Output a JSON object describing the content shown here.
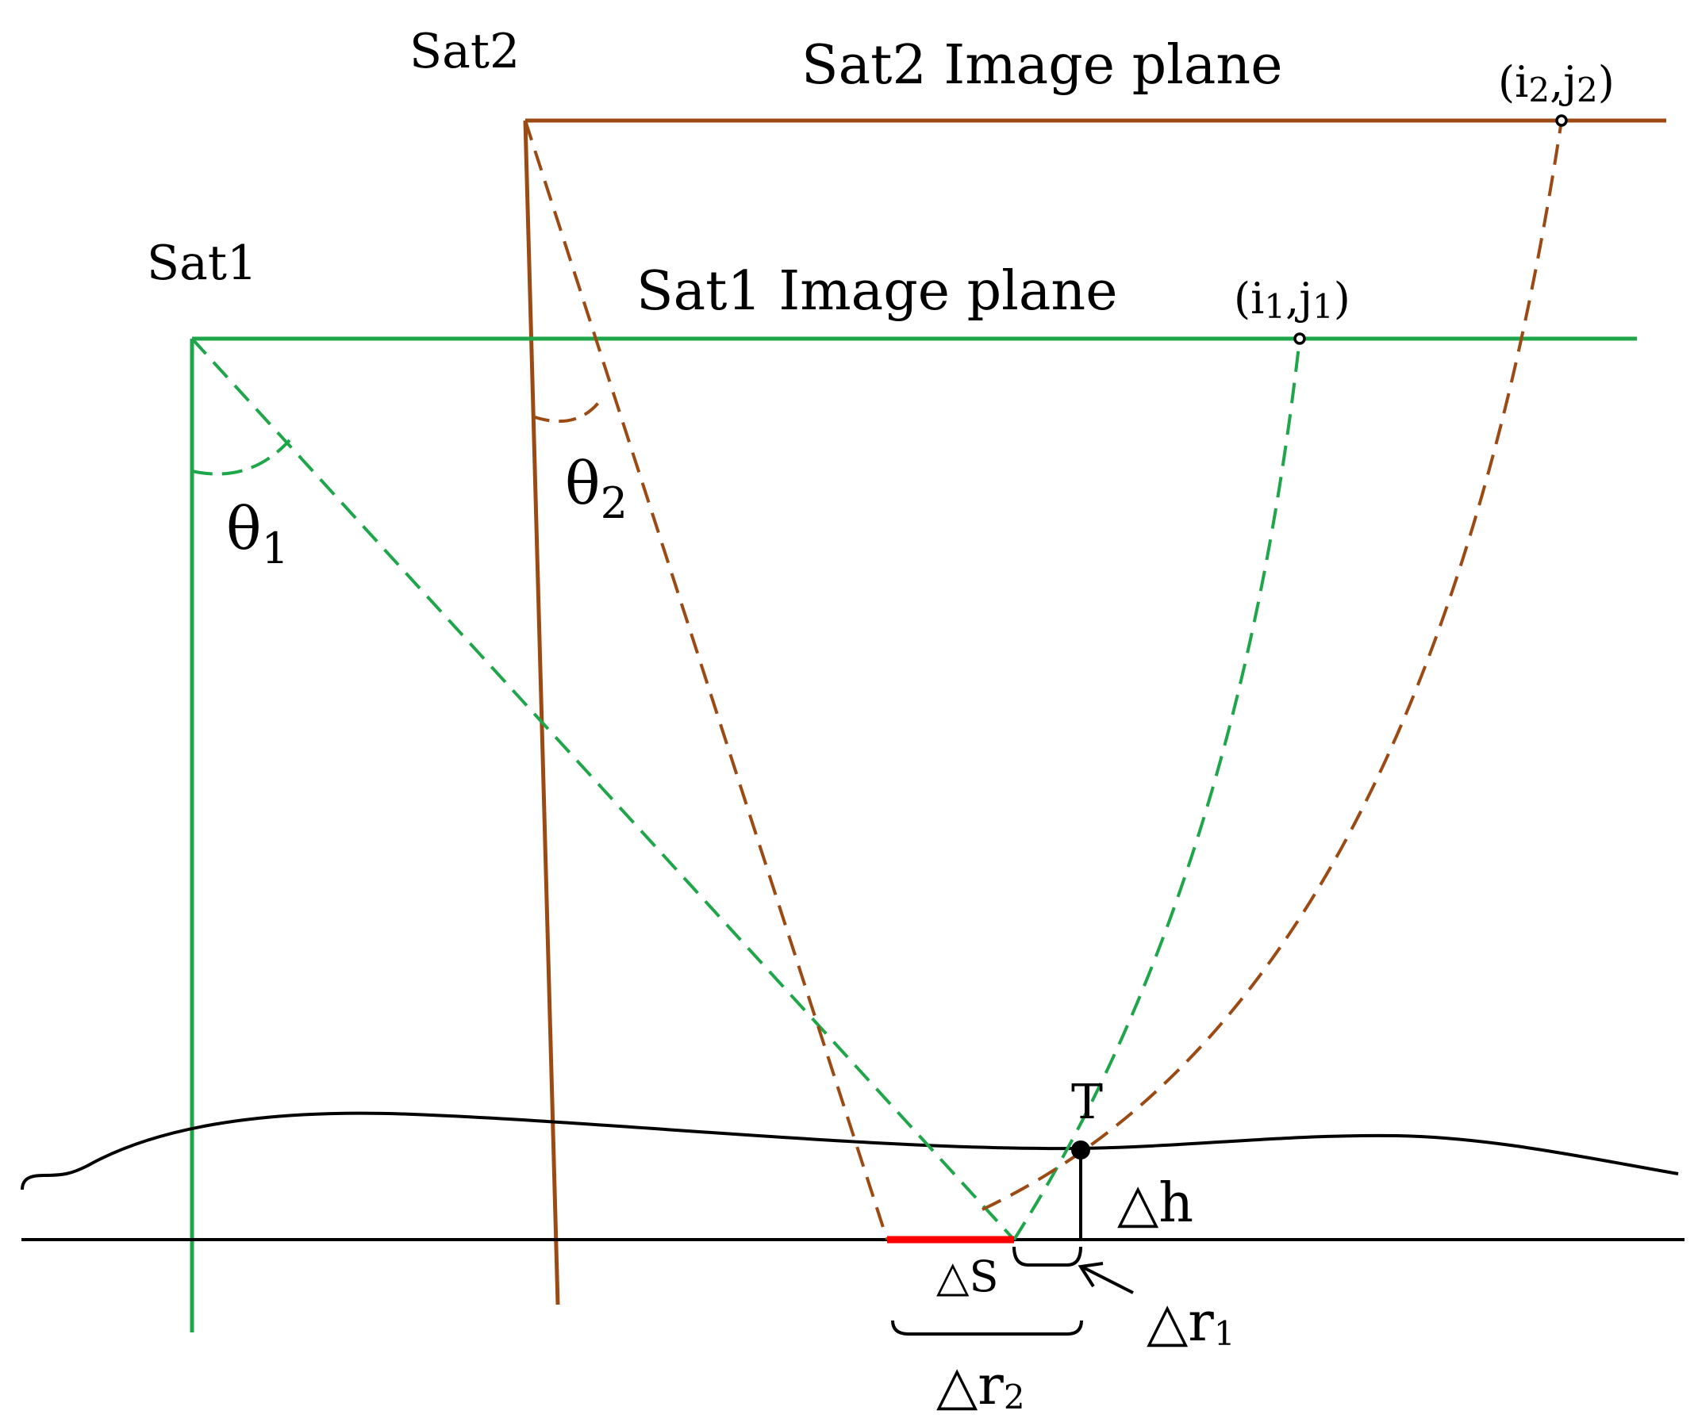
{
  "colors": {
    "sat1": "#1fa64a",
    "sat2": "#9c4a14",
    "ground": "#000000",
    "delta_s": "#ff0000",
    "background": "#ffffff"
  },
  "labels": {
    "sat1": "Sat1",
    "sat2": "Sat2",
    "sat1_image_plane": "Sat1 Image plane",
    "sat2_image_plane": "Sat2 Image plane",
    "point1_open": "(i",
    "point1_i_sub": "1",
    "point1_sep": ",j",
    "point1_j_sub": "1",
    "point1_close": ")",
    "point2_open": "(i",
    "point2_i_sub": "2",
    "point2_sep": ",j",
    "point2_j_sub": "2",
    "point2_close": ")",
    "theta1": "θ",
    "theta1_sub": "1",
    "theta2": "θ",
    "theta2_sub": "2",
    "target": "T",
    "delta_h": "△h",
    "delta_s": "△S",
    "delta_r1": "△r",
    "delta_r1_sub": "1",
    "delta_r2": "△r",
    "delta_r2_sub": "2"
  }
}
